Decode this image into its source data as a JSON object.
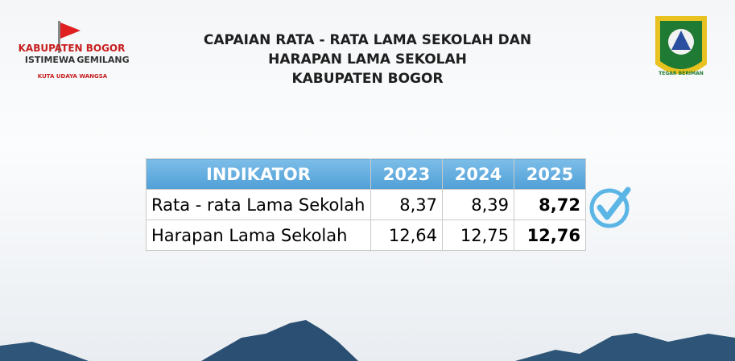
{
  "header": {
    "title": [
      "CAPAIAN RATA - RATA LAMA SEKOLAH DAN",
      "HARAPAN LAMA SEKOLAH",
      "KABUPATEN BOGOR"
    ]
  },
  "left_logo": {
    "line1": "KABUPATEN BOGOR",
    "line2a": "ISTIMEWA",
    "line2b": "GEMILANG",
    "motto": "KUTA UDAYA WANGSA"
  },
  "right_logo": {
    "motto": "TEGAR BERIMAN"
  },
  "table": {
    "header": [
      "INDIKATOR",
      "2023",
      "2024",
      "2025"
    ],
    "rows": [
      [
        "Rata - rata Lama Sekolah",
        "8,37",
        "8,39",
        "8,72"
      ],
      [
        "Harapan Lama Sekolah",
        "12,64",
        "12,75",
        "12,76"
      ]
    ]
  }
}
